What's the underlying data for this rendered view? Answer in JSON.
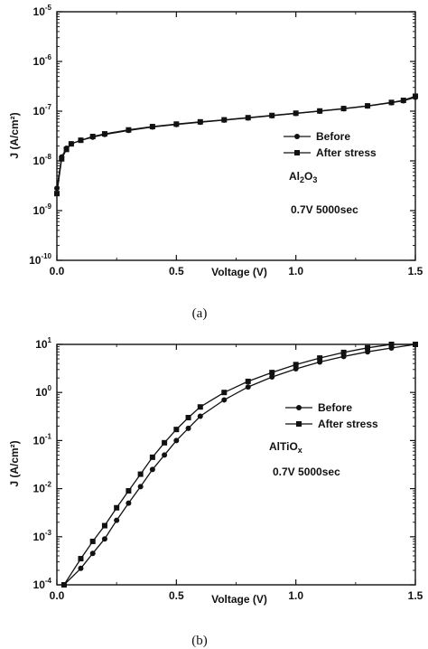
{
  "chart_data": [
    {
      "panel": "a",
      "type": "line",
      "caption": "(a)",
      "xlabel": "Voltage (V)",
      "ylabel": "J (A/cm²)",
      "xlim": [
        0,
        1.5
      ],
      "ylim": [
        1e-10,
        1e-05
      ],
      "yscale": "log",
      "x_ticks": [
        "0.0",
        "0.5",
        "1.0",
        "1.5"
      ],
      "y_ticks": [
        {
          "base": "10",
          "exp": "-10"
        },
        {
          "base": "10",
          "exp": "-9"
        },
        {
          "base": "10",
          "exp": "-8"
        },
        {
          "base": "10",
          "exp": "-7"
        },
        {
          "base": "10",
          "exp": "-6"
        },
        {
          "base": "10",
          "exp": "-5"
        }
      ],
      "legend_position": "center-right",
      "series": [
        {
          "name": "Before",
          "marker": "circle",
          "x": [
            0,
            0.02,
            0.04,
            0.06,
            0.1,
            0.15,
            0.2,
            0.3,
            0.4,
            0.5,
            0.6,
            0.7,
            0.8,
            0.9,
            1.0,
            1.1,
            1.2,
            1.3,
            1.4,
            1.45,
            1.5
          ],
          "y": [
            2.8e-09,
            1.2e-08,
            1.8e-08,
            2.2e-08,
            2.6e-08,
            3e-08,
            3.4e-08,
            4.1e-08,
            4.8e-08,
            5.4e-08,
            6e-08,
            6.6e-08,
            7.3e-08,
            8.1e-08,
            9e-08,
            1e-07,
            1.12e-07,
            1.27e-07,
            1.48e-07,
            1.62e-07,
            1.9e-07
          ]
        },
        {
          "name": "After stress",
          "marker": "square",
          "x": [
            0,
            0.02,
            0.04,
            0.06,
            0.1,
            0.15,
            0.2,
            0.3,
            0.4,
            0.5,
            0.6,
            0.7,
            0.8,
            0.9,
            1.0,
            1.1,
            1.2,
            1.3,
            1.4,
            1.45,
            1.5
          ],
          "y": [
            2.2e-09,
            1.1e-08,
            1.7e-08,
            2.2e-08,
            2.6e-08,
            3.1e-08,
            3.5e-08,
            4.2e-08,
            4.9e-08,
            5.5e-08,
            6.1e-08,
            6.7e-08,
            7.4e-08,
            8.2e-08,
            9.1e-08,
            1.01e-07,
            1.13e-07,
            1.28e-07,
            1.5e-07,
            1.65e-07,
            2e-07
          ]
        }
      ],
      "annotations": [
        {
          "text": "Al",
          "sub": "2",
          "text2": "O",
          "sub2": "3"
        },
        {
          "text": "0.7V 5000sec"
        }
      ]
    },
    {
      "panel": "b",
      "type": "line",
      "caption": "(b)",
      "xlabel": "Voltage (V)",
      "ylabel": "J (A/cm²)",
      "xlim": [
        0,
        1.5
      ],
      "ylim": [
        0.0001,
        10
      ],
      "yscale": "log",
      "x_ticks": [
        "0.0",
        "0.5",
        "1.0",
        "1.5"
      ],
      "y_ticks": [
        {
          "base": "10",
          "exp": "-4"
        },
        {
          "base": "10",
          "exp": "-3"
        },
        {
          "base": "10",
          "exp": "-2"
        },
        {
          "base": "10",
          "exp": "-1"
        },
        {
          "base": "10",
          "exp": "0"
        },
        {
          "base": "10",
          "exp": "1"
        }
      ],
      "legend_position": "center-right",
      "series": [
        {
          "name": "Before",
          "marker": "circle",
          "x": [
            0.03,
            0.1,
            0.15,
            0.2,
            0.25,
            0.3,
            0.35,
            0.4,
            0.45,
            0.5,
            0.55,
            0.6,
            0.7,
            0.8,
            0.9,
            1.0,
            1.1,
            1.2,
            1.3,
            1.4,
            1.5
          ],
          "y": [
            0.0001,
            0.00022,
            0.00045,
            0.0009,
            0.0022,
            0.005,
            0.011,
            0.025,
            0.05,
            0.1,
            0.18,
            0.32,
            0.7,
            1.3,
            2.1,
            3.1,
            4.3,
            5.6,
            7.0,
            8.4,
            10
          ]
        },
        {
          "name": "After stress",
          "marker": "square",
          "x": [
            0.03,
            0.1,
            0.15,
            0.2,
            0.25,
            0.3,
            0.35,
            0.4,
            0.45,
            0.5,
            0.55,
            0.6,
            0.7,
            0.8,
            0.9,
            1.0,
            1.1,
            1.2,
            1.3,
            1.4,
            1.5
          ],
          "y": [
            0.0001,
            0.00035,
            0.0008,
            0.0017,
            0.004,
            0.009,
            0.02,
            0.045,
            0.09,
            0.17,
            0.3,
            0.5,
            1.0,
            1.7,
            2.6,
            3.8,
            5.2,
            6.8,
            8.5,
            10,
            10
          ]
        }
      ],
      "annotations": [
        {
          "text": "AlTiO",
          "sub": "x"
        },
        {
          "text": "0.7V 5000sec"
        }
      ]
    }
  ]
}
